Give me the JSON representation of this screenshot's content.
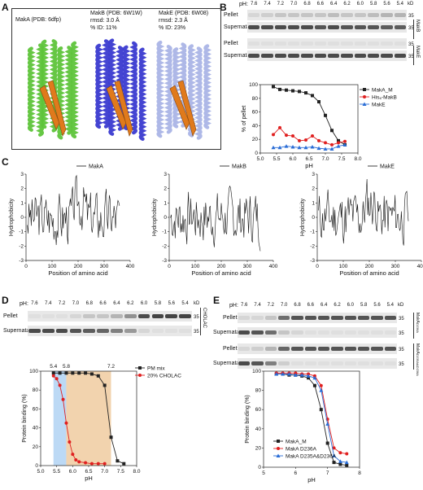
{
  "panels": {
    "A": "A",
    "B": "B",
    "C": "C",
    "D": "D",
    "E": "E"
  },
  "panelA": {
    "items": [
      {
        "title": "MakA (PDB: 6dfp)",
        "sub1": "",
        "sub2": "",
        "color": "#5ec43a"
      },
      {
        "title": "MakB (PDB: 6W1W)",
        "sub1": "rmsd: 3.0 Å",
        "sub2": "% ID: 11%",
        "color": "#3a3ad0"
      },
      {
        "title": "MakE (PDB: 6W08)",
        "sub1": "rmsd: 2.3 Å",
        "sub2": "% ID: 23%",
        "color": "#aab4e6"
      }
    ],
    "strand_color": "#e07a1c"
  },
  "panelB": {
    "ph_prefix": "pH:",
    "ph_labels": [
      "7.6",
      "7.4",
      "7.2",
      "7.0",
      "6.8",
      "6.6",
      "6.4",
      "6.2",
      "6.0",
      "5.8",
      "5.6",
      "5.4"
    ],
    "kd": "kD",
    "groups": [
      {
        "name": "MakB",
        "rows": [
          "Pellet",
          "Supernatant"
        ],
        "marks": [
          "35",
          "35"
        ]
      },
      {
        "name": "MakE",
        "rows": [
          "Pellet",
          "Supernatant"
        ],
        "marks": [
          "35",
          "35"
        ]
      }
    ]
  },
  "panelC": {
    "ylabel": "Hydrophobicity",
    "xlabel": "Position of amino acid",
    "legends": [
      "MakA",
      "MakB",
      "MakE"
    ]
  },
  "panelD": {
    "ph_prefix": "pH:",
    "ph_labels": [
      "7.6",
      "7.4",
      "7.2",
      "7.0",
      "6.8",
      "6.6",
      "6.4",
      "6.2",
      "6.0",
      "5.8",
      "5.6",
      "5.4"
    ],
    "kd": "kD",
    "rows": [
      "Pellet",
      "Supernatant"
    ],
    "marks": [
      "35",
      "35"
    ],
    "group": "CHOLAC",
    "top_ticks": [
      "5.4",
      "5.8",
      "7.2"
    ]
  },
  "panelE": {
    "ph_prefix": "pH:",
    "ph_labels": [
      "7.6",
      "7.4",
      "7.2",
      "7.0",
      "6.8",
      "6.6",
      "6.4",
      "6.2",
      "6.0",
      "5.8",
      "5.6",
      "5.4"
    ],
    "kd": "kD",
    "groups": [
      {
        "name": "MakA",
        "sup": "D236A",
        "rows": [
          "Pellet",
          "Supernatant"
        ],
        "marks": [
          "35",
          "35"
        ]
      },
      {
        "name": "MakA",
        "sup": "D235A&D236A",
        "rows": [
          "Pellet",
          "Supernatant"
        ],
        "marks": [
          "35",
          "35"
        ]
      }
    ]
  },
  "chart_data": [
    {
      "type": "line",
      "panel": "B",
      "xlabel": "pH",
      "ylabel": "% of pellet",
      "xlim": [
        5.0,
        8.0
      ],
      "ylim": [
        0,
        100
      ],
      "xticks": [
        "5.0",
        "5.5",
        "6.0",
        "6.5",
        "7.0",
        "7.5",
        "8.0"
      ],
      "yticks": [
        "0",
        "20",
        "40",
        "60",
        "80",
        "100"
      ],
      "legend_position": "top-right",
      "series": [
        {
          "name": "MakA_M",
          "color": "#222222",
          "marker": "square",
          "x": [
            5.4,
            5.6,
            5.8,
            6.0,
            6.2,
            6.4,
            6.6,
            6.8,
            7.0,
            7.2,
            7.4,
            7.6
          ],
          "y": [
            97,
            93,
            92,
            91,
            90,
            88,
            84,
            75,
            55,
            33,
            18,
            12
          ]
        },
        {
          "name": "His₆-MakB",
          "color": "#e02020",
          "marker": "circle",
          "x": [
            5.4,
            5.6,
            5.8,
            6.0,
            6.2,
            6.4,
            6.6,
            6.8,
            7.0,
            7.2,
            7.4,
            7.6
          ],
          "y": [
            27,
            37,
            26,
            25,
            18,
            19,
            25,
            18,
            15,
            12,
            15,
            17
          ]
        },
        {
          "name": "MakE",
          "color": "#2a6dd6",
          "marker": "triangle",
          "x": [
            5.4,
            5.6,
            5.8,
            6.0,
            6.2,
            6.4,
            6.6,
            6.8,
            7.0,
            7.2,
            7.4,
            7.6
          ],
          "y": [
            8,
            8,
            10,
            9,
            8,
            8,
            9,
            7,
            6,
            6,
            10,
            12
          ]
        }
      ]
    },
    {
      "type": "line",
      "panel": "C",
      "xlabel": "Position of amino acid",
      "ylabel": "Hydrophobicity",
      "xlim": [
        0,
        400
      ],
      "ylim": [
        -3,
        3
      ],
      "xticks": [
        "0",
        "100",
        "200",
        "300",
        "400"
      ],
      "yticks": [
        "-3",
        "-2",
        "-1",
        "0",
        "1",
        "2",
        "3"
      ],
      "series": [
        {
          "name": "MakA",
          "x_max": 360,
          "seed": 3
        },
        {
          "name": "MakB",
          "x_max": 350,
          "seed": 7
        },
        {
          "name": "MakE",
          "x_max": 350,
          "seed": 11
        }
      ]
    },
    {
      "type": "line",
      "panel": "D",
      "xlabel": "pH",
      "ylabel": "Protein binding (%)",
      "xlim": [
        5.0,
        8.0
      ],
      "ylim": [
        0,
        100
      ],
      "xticks": [
        "5.0",
        "5.5",
        "6.0",
        "6.5",
        "7.0",
        "7.5",
        "8.0"
      ],
      "yticks": [
        "0",
        "20",
        "40",
        "60",
        "80",
        "100"
      ],
      "shaded": [
        {
          "from": 5.4,
          "to": 5.8,
          "color": "#bcd9f5"
        },
        {
          "from": 5.8,
          "to": 7.2,
          "color": "#f2d3ae"
        }
      ],
      "legend_position": "top-right",
      "series": [
        {
          "name": "PM mix",
          "color": "#222222",
          "marker": "square",
          "x": [
            5.4,
            5.6,
            5.8,
            6.0,
            6.2,
            6.4,
            6.6,
            6.8,
            7.0,
            7.2,
            7.4,
            7.6
          ],
          "y": [
            98,
            98,
            98,
            98,
            98,
            98,
            97,
            95,
            85,
            30,
            5,
            2
          ]
        },
        {
          "name": "20% CHOLAC",
          "color": "#e02020",
          "marker": "circle",
          "x": [
            5.4,
            5.5,
            5.6,
            5.7,
            5.8,
            5.9,
            6.0,
            6.1,
            6.2,
            6.4,
            6.6,
            6.8,
            7.0
          ],
          "y": [
            95,
            92,
            85,
            70,
            45,
            25,
            12,
            6,
            4,
            3,
            2,
            2,
            2
          ]
        }
      ]
    },
    {
      "type": "line",
      "panel": "E",
      "xlabel": "pH",
      "ylabel": "Protein binding (%)",
      "xlim": [
        5,
        8
      ],
      "ylim": [
        0,
        100
      ],
      "xticks": [
        "5",
        "6",
        "7",
        "8"
      ],
      "yticks": [
        "0",
        "20",
        "40",
        "60",
        "80",
        "100"
      ],
      "legend_position": "bottom-left",
      "series": [
        {
          "name": "MakA_M",
          "color": "#222222",
          "marker": "square",
          "x": [
            5.4,
            5.6,
            5.8,
            6.0,
            6.2,
            6.4,
            6.6,
            6.8,
            7.0,
            7.2,
            7.4,
            7.6
          ],
          "y": [
            97,
            97,
            96,
            96,
            95,
            93,
            85,
            60,
            25,
            5,
            3,
            2
          ]
        },
        {
          "name": "MakA D236A",
          "color": "#e02020",
          "marker": "circle",
          "x": [
            5.4,
            5.6,
            5.8,
            6.0,
            6.2,
            6.4,
            6.6,
            6.8,
            7.0,
            7.2,
            7.4,
            7.6
          ],
          "y": [
            98,
            98,
            98,
            98,
            97,
            97,
            95,
            85,
            50,
            20,
            15,
            14
          ]
        },
        {
          "name": "MakA D235A&D236A",
          "color": "#2a6dd6",
          "marker": "triangle",
          "x": [
            5.4,
            5.6,
            5.8,
            6.0,
            6.2,
            6.4,
            6.6,
            6.8,
            7.0,
            7.2,
            7.4,
            7.6
          ],
          "y": [
            97,
            97,
            97,
            96,
            96,
            95,
            93,
            80,
            45,
            12,
            6,
            5
          ]
        }
      ]
    }
  ]
}
